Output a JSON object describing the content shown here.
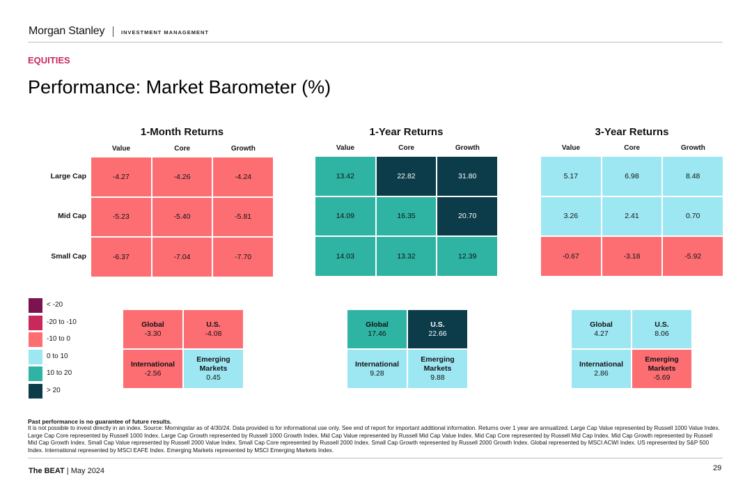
{
  "header": {
    "brand": "Morgan Stanley",
    "division": "INVESTMENT MANAGEMENT",
    "section": "EQUITIES",
    "title": "Performance: Market Barometer (%)"
  },
  "colors": {
    "lt_-20": "#7a1350",
    "-20_to_-10": "#c8285a",
    "-10_to_0": "#fd6e73",
    "0_to_10": "#9de7f2",
    "10_to_20": "#2fb3a3",
    "gt_20": "#0c3c4a",
    "accent": "#c8285a"
  },
  "legend": [
    {
      "label": "< -20",
      "color": "#7a1350"
    },
    {
      "label": "-20 to -10",
      "color": "#c8285a"
    },
    {
      "label": "-10 to 0",
      "color": "#fd6e73"
    },
    {
      "label": "0 to 10",
      "color": "#9de7f2"
    },
    {
      "label": "10 to 20",
      "color": "#2fb3a3"
    },
    {
      "label": "> 20",
      "color": "#0c3c4a"
    }
  ],
  "chart_data": [
    {
      "type": "heatmap",
      "title": "1-Month Returns",
      "columns": [
        "Value",
        "Core",
        "Growth"
      ],
      "rows": [
        "Large Cap",
        "Mid Cap",
        "Small Cap"
      ],
      "values": [
        [
          -4.27,
          -4.26,
          -4.24
        ],
        [
          -5.23,
          -5.4,
          -5.81
        ],
        [
          -6.37,
          -7.04,
          -7.7
        ]
      ],
      "labels": [
        [
          "-4.27",
          "-4.26",
          "-4.24"
        ],
        [
          "-5.23",
          "-5.40",
          "-5.81"
        ],
        [
          "-6.37",
          "-7.04",
          "-7.70"
        ]
      ],
      "regions": [
        {
          "name": "Global",
          "value": -3.3,
          "label": "-3.30"
        },
        {
          "name": "U.S.",
          "value": -4.08,
          "label": "-4.08"
        },
        {
          "name": "International",
          "value": -2.56,
          "label": "-2.56"
        },
        {
          "name": "Emerging Markets",
          "value": 0.45,
          "label": "0.45"
        }
      ]
    },
    {
      "type": "heatmap",
      "title": "1-Year Returns",
      "columns": [
        "Value",
        "Core",
        "Growth"
      ],
      "rows": [
        "Large Cap",
        "Mid Cap",
        "Small Cap"
      ],
      "values": [
        [
          13.42,
          22.82,
          31.8
        ],
        [
          14.09,
          16.35,
          20.7
        ],
        [
          14.03,
          13.32,
          12.39
        ]
      ],
      "labels": [
        [
          "13.42",
          "22.82",
          "31.80"
        ],
        [
          "14.09",
          "16.35",
          "20.70"
        ],
        [
          "14.03",
          "13.32",
          "12.39"
        ]
      ],
      "regions": [
        {
          "name": "Global",
          "value": 17.46,
          "label": "17.46"
        },
        {
          "name": "U.S.",
          "value": 22.66,
          "label": "22.66"
        },
        {
          "name": "International",
          "value": 9.28,
          "label": "9.28"
        },
        {
          "name": "Emerging Markets",
          "value": 9.88,
          "label": "9.88"
        }
      ]
    },
    {
      "type": "heatmap",
      "title": "3-Year Returns",
      "columns": [
        "Value",
        "Core",
        "Growth"
      ],
      "rows": [
        "Large Cap",
        "Mid Cap",
        "Small Cap"
      ],
      "values": [
        [
          5.17,
          6.98,
          8.48
        ],
        [
          3.26,
          2.41,
          0.7
        ],
        [
          -0.67,
          -3.18,
          -5.92
        ]
      ],
      "labels": [
        [
          "5.17",
          "6.98",
          "8.48"
        ],
        [
          "3.26",
          "2.41",
          "0.70"
        ],
        [
          "-0.67",
          "-3.18",
          "-5.92"
        ]
      ],
      "regions": [
        {
          "name": "Global",
          "value": 4.27,
          "label": "4.27"
        },
        {
          "name": "U.S.",
          "value": 8.06,
          "label": "8.06"
        },
        {
          "name": "International",
          "value": 2.86,
          "label": "2.86"
        },
        {
          "name": "Emerging Markets",
          "value": -5.69,
          "label": "-5.69"
        }
      ]
    }
  ],
  "notes": {
    "title": "Past performance is no guarantee of future results.",
    "body": "It is not possible to invest directly in an index. Source: Morningstar as of 4/30/24. Data provided is for informational use only. See end of report for important additional information. Returns over 1 year are annualized. Large Cap Value represented by Russell 1000 Value Index. Large Cap Core represented by Russell 1000 Index. Large Cap Growth represented by Russell 1000 Growth Index. Mid Cap Value represented by Russell Mid Cap Value Index. Mid Cap Core represented by Russell Mid Cap Index. Mid Cap Growth represented by Russell Mid Cap Growth Index. Small Cap Value represented by Russell 2000 Value Index. Small Cap Core represented by Russell 2000 Index. Small Cap Growth represented by Russell 2000 Growth Index. Global represented by MSCI ACWI Index. US represented by S&P 500 Index. International represented by MSCI EAFE Index. Emerging Markets represented by MSCI Emerging Markets Index."
  },
  "footer": {
    "brand": "The BEAT",
    "date": "May 2024",
    "page": "29"
  }
}
